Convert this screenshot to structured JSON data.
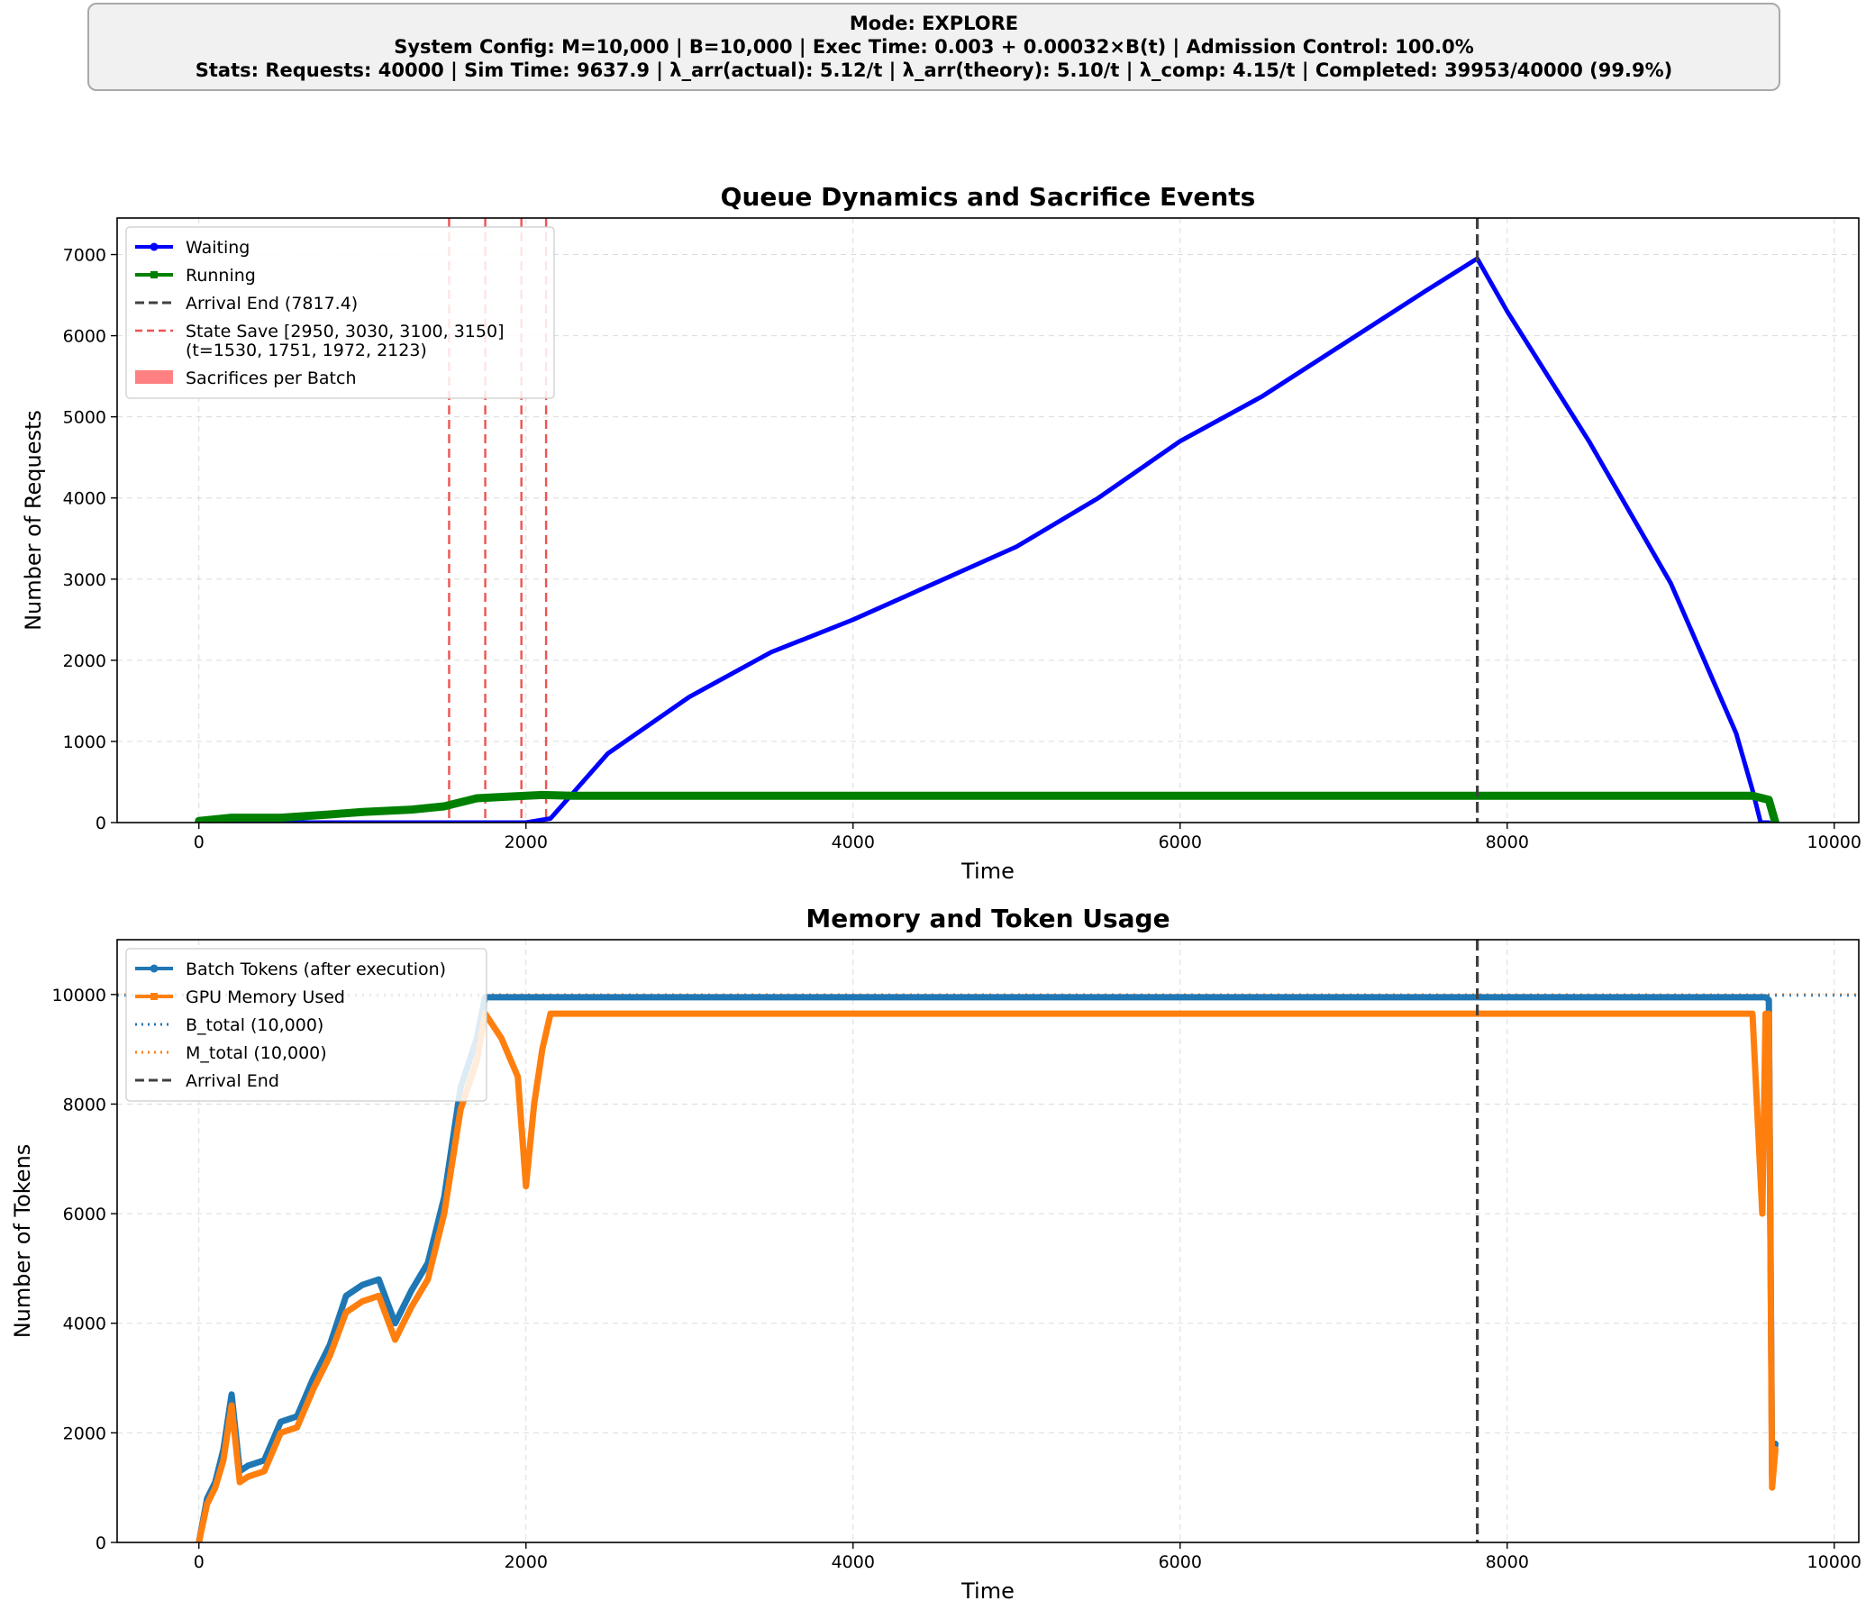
{
  "header": {
    "line1": "Mode: EXPLORE",
    "line2": "System Config: M=10,000  |  B=10,000  |  Exec Time: 0.003 + 0.00032×B(t)  |  Admission Control: 100.0%",
    "line3": "Stats: Requests: 40000  |  Sim Time: 9637.9  |  λ_arr(actual): 5.12/t  |  λ_arr(theory): 5.10/t  |  λ_comp: 4.15/t  |  Completed: 39953/40000 (99.9%)"
  },
  "colors": {
    "waiting": "#0000ff",
    "running": "#008000",
    "arrival_end": "#404040",
    "state_save": "#ef5350",
    "sacrifices": "#ff8080",
    "batch_tokens": "#1f77b4",
    "gpu_memory": "#ff7f0e"
  },
  "chart_data": [
    {
      "type": "line",
      "title": "Queue Dynamics and Sacrifice Events",
      "xlabel": "Time",
      "ylabel": "Number of Requests",
      "xlim": [
        -500,
        10150
      ],
      "ylim": [
        0,
        7450
      ],
      "xticks": [
        0,
        2000,
        4000,
        6000,
        8000,
        10000
      ],
      "yticks": [
        0,
        1000,
        2000,
        3000,
        4000,
        5000,
        6000,
        7000
      ],
      "grid": true,
      "legend_position": "top-left",
      "legend": [
        "Waiting",
        "Running",
        "Arrival End (7817.4)",
        "State Save [2950, 3030, 3100, 3150]\n(t=1530, 1751, 1972, 2123)",
        "Sacrifices per Batch"
      ],
      "vlines": {
        "arrival_end": 7817.4,
        "state_save": [
          1530,
          1751,
          1972,
          2123
        ]
      },
      "series": [
        {
          "name": "Waiting",
          "x": [
            0,
            1000,
            1500,
            1800,
            2000,
            2150,
            2500,
            3000,
            3500,
            4000,
            4500,
            5000,
            5500,
            6000,
            6500,
            7000,
            7500,
            7817,
            8000,
            8500,
            9000,
            9400,
            9500,
            9550,
            9600
          ],
          "y": [
            0,
            0,
            0,
            0,
            0,
            50,
            850,
            1550,
            2100,
            2500,
            2950,
            3400,
            4000,
            4700,
            5250,
            5900,
            6550,
            6950,
            6300,
            4700,
            2950,
            1100,
            400,
            0,
            0
          ]
        },
        {
          "name": "Running",
          "x": [
            0,
            200,
            500,
            800,
            1000,
            1300,
            1500,
            1700,
            1900,
            2100,
            2300,
            4000,
            6000,
            8000,
            9500,
            9600,
            9640
          ],
          "y": [
            20,
            60,
            60,
            100,
            130,
            160,
            200,
            300,
            320,
            340,
            330,
            330,
            330,
            330,
            330,
            280,
            0
          ]
        }
      ]
    },
    {
      "type": "line",
      "title": "Memory and Token Usage",
      "xlabel": "Time",
      "ylabel": "Number of Tokens",
      "xlim": [
        -500,
        10150
      ],
      "ylim": [
        0,
        11000
      ],
      "xticks": [
        0,
        2000,
        4000,
        6000,
        8000,
        10000
      ],
      "yticks": [
        0,
        2000,
        4000,
        6000,
        8000,
        10000
      ],
      "grid": true,
      "legend_position": "top-left",
      "legend": [
        "Batch Tokens (after execution)",
        "GPU Memory Used",
        "B_total (10,000)",
        "M_total (10,000)",
        "Arrival End"
      ],
      "hlines": {
        "B_total": 10000,
        "M_total": 10000
      },
      "vlines": {
        "arrival_end": 7817.4
      },
      "series": [
        {
          "name": "Batch Tokens (after execution)",
          "x": [
            0,
            50,
            100,
            150,
            200,
            250,
            300,
            400,
            500,
            600,
            700,
            800,
            900,
            1000,
            1100,
            1200,
            1300,
            1400,
            1500,
            1600,
            1700,
            1750,
            1900,
            2000,
            2050,
            2100,
            2150,
            2200,
            4000,
            6000,
            8000,
            9500,
            9580,
            9600,
            9620,
            9640
          ],
          "y": [
            0,
            800,
            1100,
            1700,
            2700,
            1300,
            1400,
            1500,
            2200,
            2300,
            3000,
            3600,
            4500,
            4700,
            4800,
            4000,
            4600,
            5100,
            6300,
            8300,
            9200,
            9950,
            9950,
            9950,
            9950,
            9950,
            9950,
            9950,
            9950,
            9950,
            9950,
            9950,
            9950,
            9900,
            1200,
            1800
          ]
        },
        {
          "name": "GPU Memory Used",
          "x": [
            0,
            50,
            100,
            150,
            200,
            250,
            300,
            400,
            500,
            600,
            700,
            800,
            900,
            1000,
            1100,
            1200,
            1300,
            1400,
            1500,
            1600,
            1700,
            1750,
            1850,
            1950,
            2000,
            2050,
            2100,
            2150,
            2200,
            4000,
            6000,
            8000,
            9500,
            9560,
            9580,
            9600,
            9620,
            9640
          ],
          "y": [
            0,
            700,
            1000,
            1500,
            2500,
            1100,
            1200,
            1300,
            2000,
            2100,
            2800,
            3400,
            4200,
            4400,
            4500,
            3700,
            4300,
            4800,
            6000,
            7900,
            8800,
            9650,
            9200,
            8500,
            6500,
            8000,
            9000,
            9650,
            9650,
            9650,
            9650,
            9650,
            9650,
            6000,
            9650,
            9650,
            1000,
            1700
          ]
        }
      ]
    }
  ]
}
